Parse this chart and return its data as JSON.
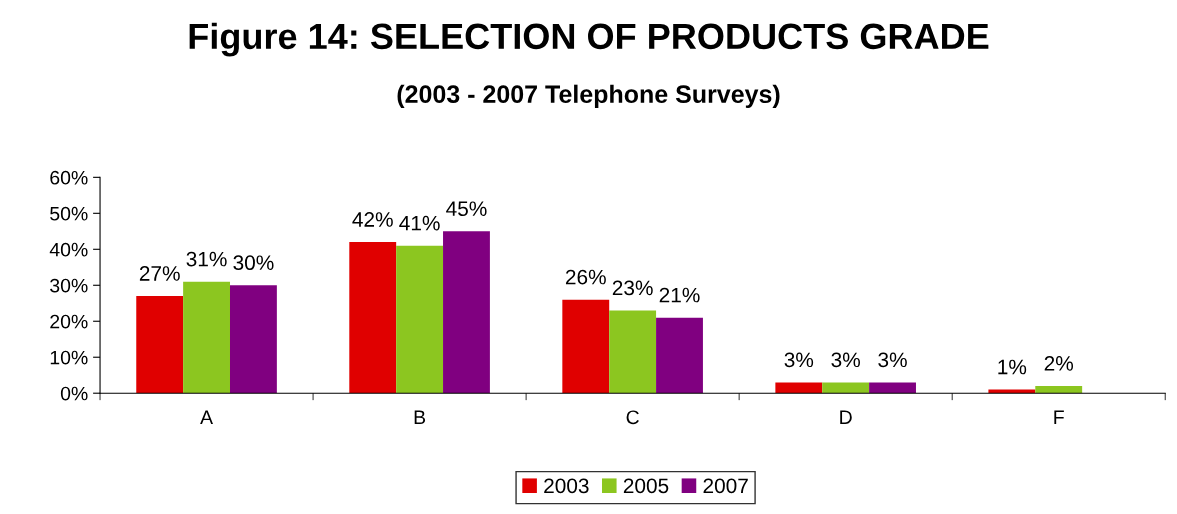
{
  "chart_data": {
    "type": "bar",
    "title": "Figure 14: SELECTION OF PRODUCTS GRADE",
    "subtitle": "(2003 - 2007 Telephone Surveys)",
    "categories": [
      "A",
      "B",
      "C",
      "D",
      "F"
    ],
    "series": [
      {
        "name": "2003",
        "color": "#e00000",
        "values": [
          27,
          42,
          26,
          3,
          1
        ],
        "value_labels": [
          "27%",
          "42%",
          "26%",
          "3%",
          "1%"
        ]
      },
      {
        "name": "2005",
        "color": "#8cc620",
        "values": [
          31,
          41,
          23,
          3,
          2
        ],
        "value_labels": [
          "31%",
          "41%",
          "23%",
          "3%",
          "2%"
        ]
      },
      {
        "name": "2007",
        "color": "#800080",
        "values": [
          30,
          45,
          21,
          3,
          null
        ],
        "value_labels": [
          "30%",
          "45%",
          "21%",
          "3%",
          null
        ]
      }
    ],
    "ylim": [
      0,
      60
    ],
    "yticks": [
      {
        "value": 0,
        "label": "0%"
      },
      {
        "value": 10,
        "label": "10%"
      },
      {
        "value": 20,
        "label": "20%"
      },
      {
        "value": 30,
        "label": "30%"
      },
      {
        "value": 40,
        "label": "40%"
      },
      {
        "value": 50,
        "label": "50%"
      },
      {
        "value": 60,
        "label": "60%"
      }
    ],
    "grid": false,
    "legend": "bottom"
  }
}
